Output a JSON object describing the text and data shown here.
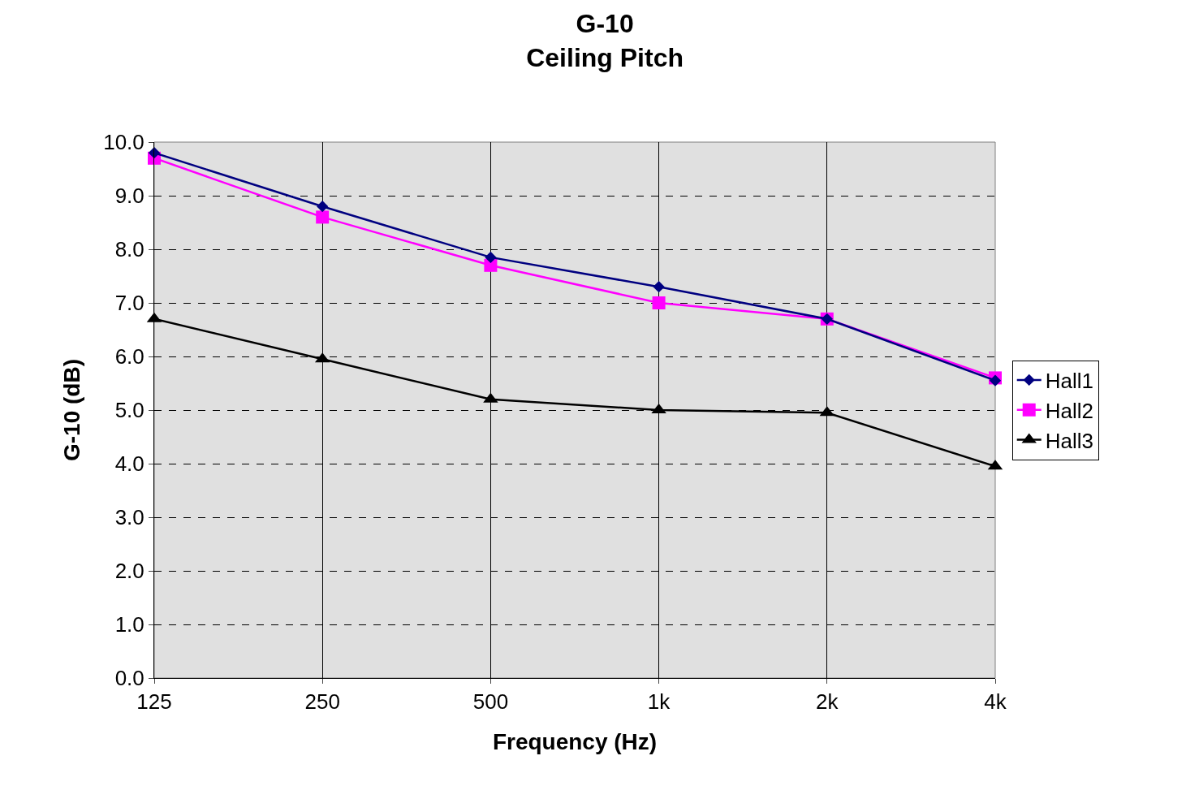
{
  "chart_data": {
    "type": "line",
    "title": "G-10\nCeiling Pitch",
    "xlabel": "Frequency (Hz)",
    "ylabel": "G-10 (dB)",
    "categories": [
      "125",
      "250",
      "500",
      "1k",
      "2k",
      "4k"
    ],
    "series": [
      {
        "name": "Hall1",
        "color": "#000080",
        "marker": "diamond",
        "values": [
          9.8,
          8.8,
          7.85,
          7.3,
          6.7,
          5.55
        ]
      },
      {
        "name": "Hall2",
        "color": "#ff00ff",
        "marker": "square",
        "values": [
          9.7,
          8.6,
          7.7,
          7.0,
          6.7,
          5.6
        ]
      },
      {
        "name": "Hall3",
        "color": "#000000",
        "marker": "triangle",
        "values": [
          6.7,
          5.95,
          5.2,
          5.0,
          4.95,
          3.95
        ]
      }
    ],
    "ylim": [
      0,
      10
    ],
    "yticks": [
      {
        "value": 0,
        "label": "0.0"
      },
      {
        "value": 1,
        "label": "1.0"
      },
      {
        "value": 2,
        "label": "2.0"
      },
      {
        "value": 3,
        "label": "3.0"
      },
      {
        "value": 4,
        "label": "4.0"
      },
      {
        "value": 5,
        "label": "5.0"
      },
      {
        "value": 6,
        "label": "6.0"
      },
      {
        "value": 7,
        "label": "7.0"
      },
      {
        "value": 8,
        "label": "8.0"
      },
      {
        "value": 9,
        "label": "9.0"
      },
      {
        "value": 10,
        "label": "10.0"
      }
    ],
    "grid": true,
    "legend": "right",
    "line_style": "solid"
  }
}
